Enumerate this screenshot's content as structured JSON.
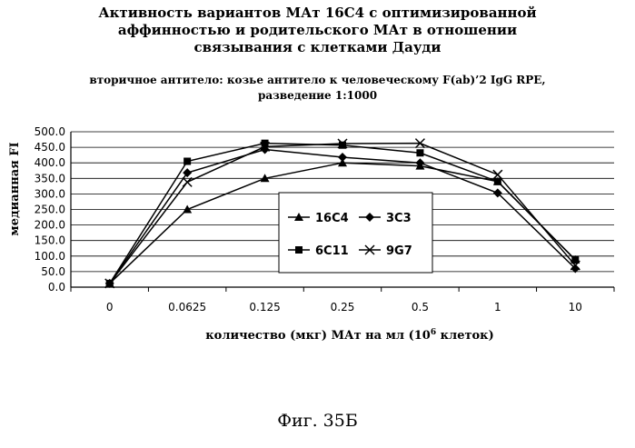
{
  "figure": {
    "title_lines": [
      "Активность вариантов МАт 16С4 с оптимизированной",
      "аффинностью и родительского МАт в отношении",
      "связывания с клетками Дауди"
    ],
    "subtitle_lines": [
      "вторичное антитело: козье антитело к человеческому F(ab)’2 IgG RPE,",
      "разведение 1:1000"
    ],
    "caption": "Фиг. 35Б"
  },
  "chart_data": {
    "type": "line",
    "title": "Активность вариантов МАт 16С4 с оптимизированной аффинностью и родительского МАт в отношении связывания с клетками Дауди",
    "subtitle": "вторичное антитело: козье антитело к человеческому F(ab)’2 IgG RPE, разведение 1:1000",
    "categories": [
      "0",
      "0.0625",
      "0.125",
      "0.25",
      "0.5",
      "1",
      "10"
    ],
    "xlabel": "количество (мкг) МАт на мл (10⁶ клеток)",
    "xlabel_main": "количество (мкг) МАт на мл (10",
    "xlabel_sup": "6",
    "xlabel_end": " клеток)",
    "ylabel": "медианная FI",
    "ylim": [
      0,
      500
    ],
    "yticks": [
      "0.0",
      "50.0",
      "100.0",
      "150.0",
      "200.0",
      "250.0",
      "300.0",
      "350.0",
      "400.0",
      "450.0",
      "500.0"
    ],
    "grid": "horizontal",
    "legend_position": "inside-center",
    "series": [
      {
        "name": "16C4",
        "marker": "triangle",
        "values": [
          12,
          250,
          350,
          400,
          390,
          340,
          88
        ]
      },
      {
        "name": "3C3",
        "marker": "diamond",
        "values": [
          12,
          368,
          443,
          418,
          400,
          303,
          60
        ]
      },
      {
        "name": "6C11",
        "marker": "square",
        "values": [
          12,
          405,
          463,
          457,
          432,
          340,
          88
        ]
      },
      {
        "name": "9G7",
        "marker": "x",
        "values": [
          12,
          338,
          452,
          462,
          463,
          362,
          70
        ]
      }
    ]
  }
}
